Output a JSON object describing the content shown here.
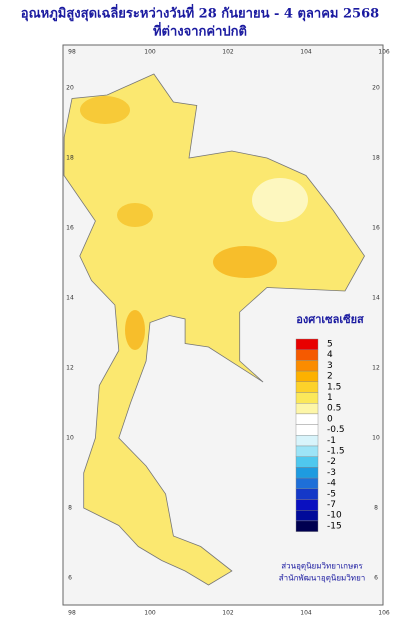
{
  "title": {
    "line1": "อุณหภูมิสูงสุดเฉลี่ยระหว่างวันที่  28 กันยายน - 4 ตุลาคม 2568",
    "line2": "ที่ต่างจากค่าปกติ"
  },
  "map": {
    "lon_ticks": [
      "98",
      "100",
      "102",
      "104",
      "106"
    ],
    "lat_ticks": [
      "20",
      "18",
      "16",
      "14",
      "12",
      "10",
      "8",
      "6"
    ]
  },
  "legend": {
    "title": "องศาเซลเซียส",
    "items": [
      {
        "label": "5",
        "color": "#e80000"
      },
      {
        "label": "4",
        "color": "#f55a00"
      },
      {
        "label": "3",
        "color": "#fb8c00"
      },
      {
        "label": "2",
        "color": "#fdb100"
      },
      {
        "label": "1.5",
        "color": "#fdd22a"
      },
      {
        "label": "1",
        "color": "#fbe85a"
      },
      {
        "label": "0.5",
        "color": "#fdf6a8"
      },
      {
        "label": "0",
        "color": "#ffffff"
      },
      {
        "label": "-0.5",
        "color": "#ffffff"
      },
      {
        "label": "-1",
        "color": "#d8f4fb"
      },
      {
        "label": "-1.5",
        "color": "#9de4f7"
      },
      {
        "label": "-2",
        "color": "#4fc8ee"
      },
      {
        "label": "-3",
        "color": "#1e9be0"
      },
      {
        "label": "-4",
        "color": "#1e6fd8"
      },
      {
        "label": "-5",
        "color": "#1438c8"
      },
      {
        "label": "-7",
        "color": "#0a10c0"
      },
      {
        "label": "-10",
        "color": "#000a9a"
      },
      {
        "label": "-15",
        "color": "#000050"
      }
    ]
  },
  "credits": {
    "line1": "ส่วนอุตุนิยมวิทยาเกษตร",
    "line2": "สำนักพัฒนาอุตุนิยมวิทยา"
  }
}
